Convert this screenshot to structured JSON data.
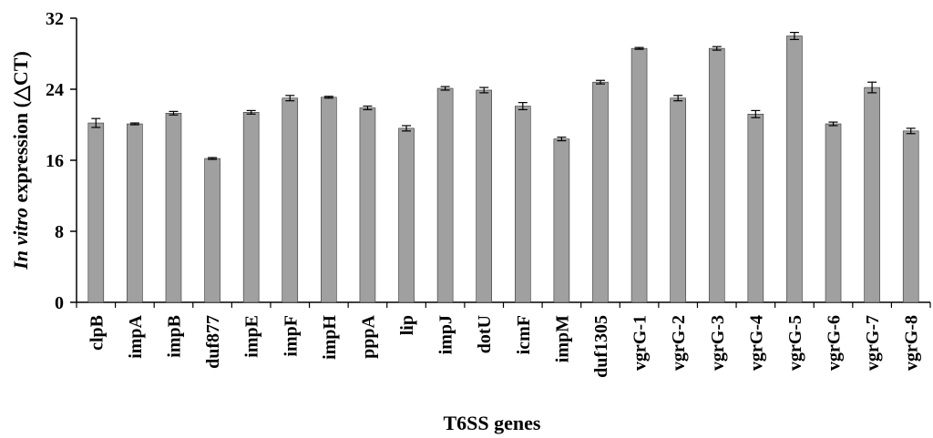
{
  "chart_data": {
    "type": "bar",
    "xlabel": "T6SS genes",
    "ylabel_italic": "In vitro",
    "ylabel_rest": " expression (△CT)",
    "ylim": [
      0,
      32
    ],
    "yticks": [
      0,
      8,
      16,
      24,
      32
    ],
    "grid": false,
    "categories": [
      "clpB",
      "impA",
      "impB",
      "duf877",
      "impE",
      "impF",
      "impH",
      "pppA",
      "lip",
      "impJ",
      "dotU",
      "icmF",
      "impM",
      "duf1305",
      "vgrG-1",
      "vgrG-2",
      "vgrG-3",
      "vgrG-4",
      "vgrG-5",
      "vgrG-6",
      "vgrG-7",
      "vgrG-8"
    ],
    "values": [
      20.2,
      20.1,
      21.3,
      16.2,
      21.4,
      23.0,
      23.1,
      21.9,
      19.6,
      24.1,
      23.9,
      22.1,
      18.4,
      24.8,
      28.6,
      23.0,
      28.6,
      21.2,
      30.0,
      20.1,
      24.2,
      19.3
    ],
    "errors": [
      0.5,
      0.1,
      0.2,
      0.1,
      0.2,
      0.3,
      0.1,
      0.2,
      0.3,
      0.2,
      0.3,
      0.4,
      0.2,
      0.2,
      0.1,
      0.3,
      0.2,
      0.4,
      0.4,
      0.2,
      0.6,
      0.3
    ],
    "bar_color": "#a0a0a0"
  }
}
